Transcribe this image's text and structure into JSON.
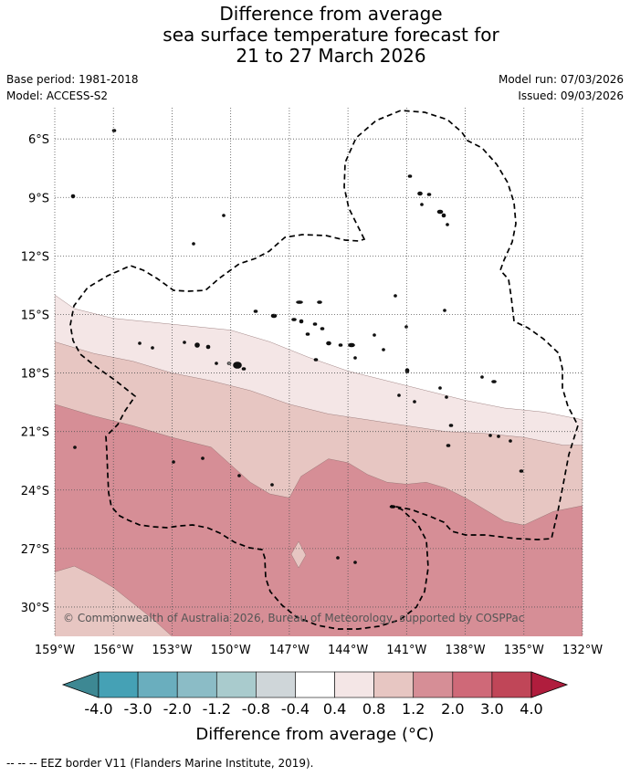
{
  "title": {
    "line1": "Difference from average",
    "line2": "sea surface temperature forecast for",
    "line3": "21 to 27 March 2026"
  },
  "meta": {
    "base_period": "Base period: 1981-2018",
    "model": "Model: ACCESS-S2",
    "model_run": "Model run: 07/03/2026",
    "issued": "Issued: 09/03/2026"
  },
  "copyright": "© Commonwealth of Australia 2026, Bureau of Meteorology, supported by COSPPac",
  "footer": "-- -- -- EEZ border V11 (Flanders Marine Institute, 2019).",
  "chart_data": {
    "type": "heatmap",
    "title": "Difference from average sea surface temperature forecast for 21 to 27 March 2026",
    "x_ticks": [
      "159°W",
      "156°W",
      "153°W",
      "150°W",
      "147°W",
      "144°W",
      "141°W",
      "138°W",
      "135°W",
      "132°W"
    ],
    "y_ticks": [
      "6°S",
      "9°S",
      "12°S",
      "15°S",
      "18°S",
      "21°S",
      "24°S",
      "27°S",
      "30°S"
    ],
    "xlim": [
      -159,
      -132
    ],
    "ylim": [
      -31.5,
      -4.4
    ],
    "colorbar": {
      "label": "Difference from average (°C)",
      "ticks": [
        "-4.0",
        "-3.0",
        "-2.0",
        "-1.2",
        "-0.8",
        "-0.4",
        "0.4",
        "0.8",
        "1.2",
        "2.0",
        "3.0",
        "4.0"
      ],
      "colors": [
        "#45a1b5",
        "#6aaebe",
        "#8bbcc6",
        "#a9cbcd",
        "#cfd6d9",
        "#ffffff",
        "#f4e6e6",
        "#e7c6c2",
        "#d68e96",
        "#cf6978",
        "#c04658"
      ],
      "under_color": "#3d8893",
      "over_color": "#b01d3d"
    },
    "bands": [
      {
        "range": "0.4 to 0.8",
        "color": "#f4e6e6",
        "upper": [
          [
            -159,
            -14.0
          ],
          [
            -158,
            -14.7
          ],
          [
            -156,
            -15.2
          ],
          [
            -154,
            -15.4
          ],
          [
            -150,
            -15.8
          ],
          [
            -148,
            -16.4
          ],
          [
            -146,
            -17.2
          ],
          [
            -144,
            -17.9
          ],
          [
            -142,
            -18.4
          ],
          [
            -140,
            -18.9
          ],
          [
            -138,
            -19.4
          ],
          [
            -136,
            -19.8
          ],
          [
            -134,
            -20.0
          ],
          [
            -132,
            -20.4
          ]
        ]
      },
      {
        "range": "0.8 to 1.2",
        "color": "#e7c6c2",
        "upper": [
          [
            -159,
            -16.4
          ],
          [
            -157,
            -17.0
          ],
          [
            -155,
            -17.4
          ],
          [
            -153,
            -18.0
          ],
          [
            -151,
            -18.4
          ],
          [
            -149,
            -18.9
          ],
          [
            -147,
            -19.6
          ],
          [
            -145,
            -20.1
          ],
          [
            -143,
            -20.4
          ],
          [
            -141,
            -20.7
          ],
          [
            -139,
            -21.0
          ],
          [
            -137,
            -21.1
          ],
          [
            -135,
            -21.3
          ],
          [
            -133,
            -21.7
          ],
          [
            -132,
            -21.7
          ]
        ]
      },
      {
        "range": "1.2 to 2.0",
        "color": "#d68e96",
        "upper": [
          [
            -159,
            -19.6
          ],
          [
            -157,
            -20.2
          ],
          [
            -155,
            -20.7
          ],
          [
            -153,
            -21.3
          ],
          [
            -151,
            -21.8
          ],
          [
            -150,
            -22.7
          ],
          [
            -149,
            -23.6
          ],
          [
            -148,
            -24.2
          ],
          [
            -147,
            -24.4
          ],
          [
            -146.4,
            -23.3
          ],
          [
            -145,
            -22.4
          ],
          [
            -144,
            -22.6
          ],
          [
            -143,
            -23.2
          ],
          [
            -142,
            -23.6
          ],
          [
            -141,
            -23.7
          ],
          [
            -140,
            -23.6
          ],
          [
            -139,
            -23.9
          ],
          [
            -138,
            -24.4
          ],
          [
            -137,
            -25.0
          ],
          [
            -136,
            -25.6
          ],
          [
            -135,
            -25.8
          ],
          [
            -133.5,
            -25.1
          ],
          [
            -132,
            -24.8
          ]
        ]
      },
      {
        "range": "0.8 to 1.2",
        "color": "#e7c6c2",
        "upper": [
          [
            -159,
            -28.2
          ],
          [
            -158,
            -27.9
          ],
          [
            -157,
            -28.4
          ],
          [
            -156,
            -29.0
          ],
          [
            -155,
            -29.8
          ],
          [
            -154,
            -30.6
          ],
          [
            -153,
            -31.5
          ]
        ]
      }
    ],
    "annotations": [
      "EEZ border (dashed)"
    ]
  }
}
